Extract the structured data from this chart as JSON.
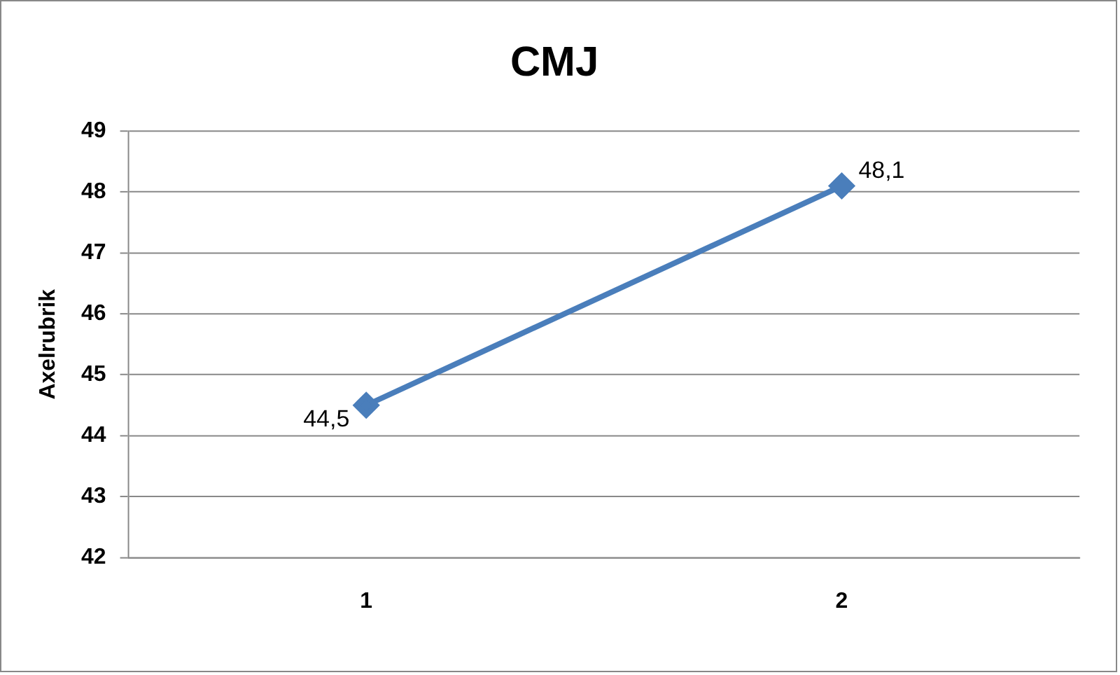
{
  "chart_data": {
    "type": "line",
    "title": "CMJ",
    "ylabel": "Axelrubrik",
    "categories": [
      "1",
      "2"
    ],
    "series": [
      {
        "color": "#4a7ebb",
        "values": [
          44.5,
          48.1
        ],
        "value_labels": [
          "44,5",
          "48,1"
        ]
      }
    ],
    "ylim": [
      42,
      49
    ],
    "yticks": [
      42,
      43,
      44,
      45,
      46,
      47,
      48,
      49
    ],
    "grid": "y",
    "legend": false,
    "marker": "diamond",
    "line_style": "solid"
  }
}
